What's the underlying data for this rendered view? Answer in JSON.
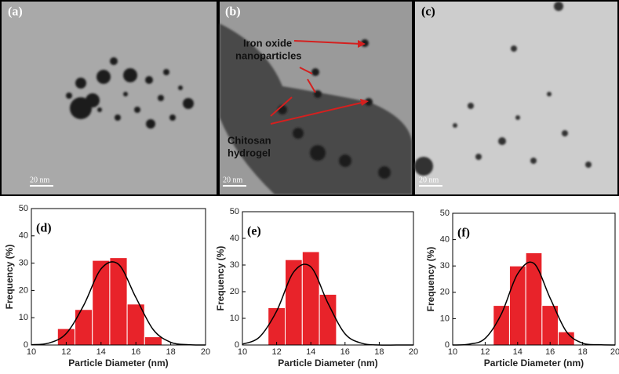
{
  "images": [
    {
      "label": "(a)",
      "scale": "20 nm"
    },
    {
      "label": "(b)",
      "scale": "20 nm",
      "annotations": [
        [
          "Iron oxide",
          "nanoparticles"
        ],
        [
          "Chitosan",
          "hydrogel"
        ]
      ]
    },
    {
      "label": "(c)",
      "scale": "20 nm"
    }
  ],
  "chart_data": [
    {
      "type": "histogram",
      "title": "(d)",
      "x_label": "Particle Diameter (nm)",
      "y_label": "Frequency (%)",
      "color": "#e8232a",
      "bins": [
        11.5,
        12.5,
        13.5,
        14.5,
        15.5,
        16.5,
        17.5
      ],
      "values": [
        6,
        13,
        31,
        32,
        15,
        3
      ],
      "fit": {
        "color": "#000000",
        "x": [
          10,
          11,
          12,
          13,
          14,
          15,
          16,
          17,
          18,
          19,
          20
        ],
        "values": [
          0.1,
          0.7,
          4.2,
          14.5,
          27.9,
          29.6,
          17.4,
          5.6,
          1.0,
          0.1,
          0
        ]
      },
      "xlim": [
        10,
        20
      ],
      "xticks": [
        10,
        12,
        14,
        16,
        18,
        20
      ],
      "ylim": [
        0,
        50
      ],
      "yticks": [
        0,
        10,
        20,
        30,
        40,
        50
      ]
    },
    {
      "type": "histogram",
      "title": "(e)",
      "x_label": "Particle Diameter (nm)",
      "y_label": "Frequency (%)",
      "color": "#e8232a",
      "bins": [
        11.5,
        12.5,
        13.5,
        14.5,
        15.5
      ],
      "values": [
        14,
        32,
        35,
        19
      ],
      "fit": {
        "color": "#000000",
        "x": [
          10,
          11,
          12,
          13,
          14,
          15,
          16,
          17,
          18,
          19,
          20
        ],
        "values": [
          0.3,
          3.0,
          12.7,
          27.4,
          29.3,
          15.7,
          4.2,
          0.6,
          0,
          0,
          0
        ]
      },
      "xlim": [
        10,
        20
      ],
      "xticks": [
        10,
        12,
        14,
        16,
        18,
        20
      ],
      "ylim": [
        0,
        50
      ],
      "yticks": [
        0,
        10,
        20,
        30,
        40,
        50
      ]
    },
    {
      "type": "histogram",
      "title": "(f)",
      "x_label": "Particle Diameter (nm)",
      "y_label": "Frequency (%)",
      "color": "#e8232a",
      "bins": [
        12.5,
        13.5,
        14.5,
        15.5,
        16.5,
        17.5
      ],
      "values": [
        15,
        30,
        35,
        15,
        5
      ],
      "fit": {
        "color": "#000000",
        "x": [
          10,
          11,
          12,
          13,
          14,
          15,
          16,
          17,
          18,
          19,
          20
        ],
        "values": [
          0,
          0.3,
          2.5,
          11.8,
          27.0,
          31.0,
          17.8,
          5.1,
          0.7,
          0.1,
          0
        ]
      },
      "xlim": [
        10,
        20
      ],
      "xticks": [
        10,
        12,
        14,
        16,
        18,
        20
      ],
      "ylim": [
        0,
        50
      ],
      "yticks": [
        0,
        10,
        20,
        30,
        40,
        50
      ]
    }
  ]
}
